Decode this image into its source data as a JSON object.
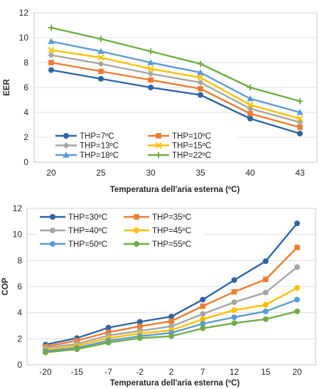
{
  "chart_data": [
    {
      "type": "line",
      "xlabel": "Temperatura dell'aria esterna (ºC)",
      "ylabel": "EER",
      "categories": [
        "20",
        "25",
        "30",
        "35",
        "40",
        "43"
      ],
      "ylim": [
        0,
        12
      ],
      "yticks": [
        0,
        2,
        4,
        6,
        8,
        10,
        12
      ],
      "grid": "horizontal",
      "legend": "bottom-left",
      "series": [
        {
          "name": "THP=7ºC",
          "color": "#2e64a8",
          "marker": "circle",
          "values": [
            7.4,
            6.7,
            6.0,
            5.4,
            3.5,
            2.3
          ]
        },
        {
          "name": "THP=10ºC",
          "color": "#ed7d31",
          "marker": "square",
          "values": [
            8.0,
            7.3,
            6.6,
            5.9,
            3.9,
            2.8
          ]
        },
        {
          "name": "THP=13ºC",
          "color": "#a5a5a5",
          "marker": "diamond",
          "values": [
            8.6,
            7.9,
            7.1,
            6.4,
            4.3,
            3.2
          ]
        },
        {
          "name": "THP=15ºC",
          "color": "#ffc000",
          "marker": "x",
          "values": [
            9.0,
            8.4,
            7.5,
            6.8,
            4.6,
            3.5
          ]
        },
        {
          "name": "THP=18ºC",
          "color": "#5b9bd5",
          "marker": "triangle",
          "values": [
            9.7,
            8.9,
            8.0,
            7.2,
            5.1,
            4.0
          ]
        },
        {
          "name": "THP=22ºC",
          "color": "#70ad47",
          "marker": "plus",
          "values": [
            10.8,
            9.9,
            8.9,
            7.9,
            6.0,
            4.9
          ]
        }
      ]
    },
    {
      "type": "line",
      "xlabel": "Temperatura dell'aria esterna (ºC)",
      "ylabel": "COP",
      "categories": [
        "-20",
        "-15",
        "-7",
        "-2",
        "2",
        "7",
        "12",
        "15",
        "20"
      ],
      "ylim": [
        0,
        12
      ],
      "yticks": [
        0,
        2,
        4,
        6,
        8,
        10,
        12
      ],
      "grid": "horizontal",
      "legend": "top-left",
      "series": [
        {
          "name": "THP=30ºC",
          "color": "#2e64a8",
          "marker": "circle",
          "values": [
            1.55,
            2.05,
            2.85,
            3.3,
            3.7,
            5.0,
            6.5,
            7.95,
            10.85
          ]
        },
        {
          "name": "THP=35ºC",
          "color": "#ed7d31",
          "marker": "square",
          "values": [
            1.4,
            1.85,
            2.5,
            2.95,
            3.35,
            4.5,
            5.6,
            6.55,
            9.0
          ]
        },
        {
          "name": "THP=40ºC",
          "color": "#a5a5a5",
          "marker": "circle",
          "values": [
            1.3,
            1.6,
            2.25,
            2.6,
            2.95,
            3.9,
            4.8,
            5.55,
            7.5
          ]
        },
        {
          "name": "THP=45ºC",
          "color": "#ffc000",
          "marker": "circle",
          "values": [
            1.15,
            1.45,
            2.05,
            2.4,
            2.65,
            3.5,
            4.2,
            4.6,
            5.9
          ]
        },
        {
          "name": "THP=50ºC",
          "color": "#5b9bd5",
          "marker": "circle",
          "values": [
            1.05,
            1.3,
            1.85,
            2.2,
            2.45,
            3.15,
            3.65,
            4.1,
            5.0
          ]
        },
        {
          "name": "THP=55ºC",
          "color": "#70ad47",
          "marker": "circle",
          "values": [
            0.95,
            1.2,
            1.7,
            2.05,
            2.2,
            2.8,
            3.2,
            3.5,
            4.1
          ]
        }
      ]
    }
  ]
}
